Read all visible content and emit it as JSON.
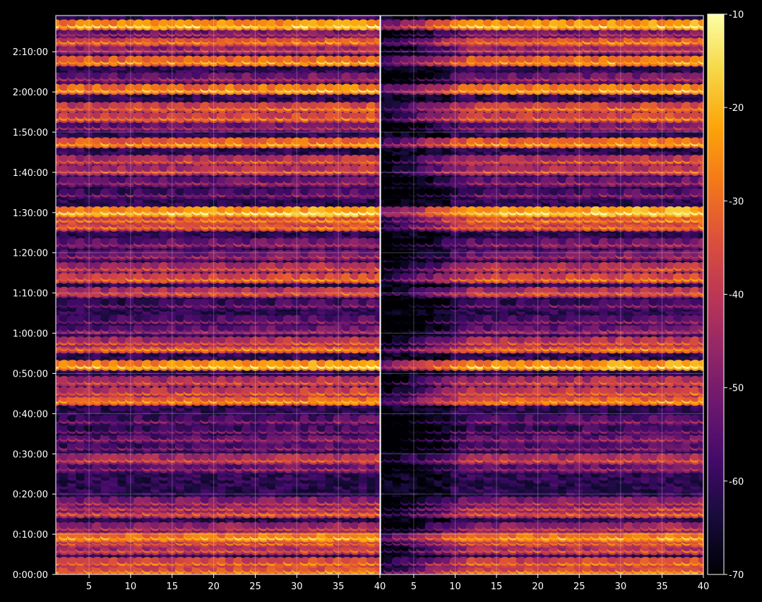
{
  "chart_data": {
    "type": "heatmap",
    "title": "",
    "colormap": "inferno",
    "background": "#000000",
    "grid": true,
    "panels": [
      {
        "name": "",
        "x_ticks": [
          5,
          10,
          15,
          20,
          25,
          30,
          35,
          40
        ],
        "x_range": [
          1,
          40
        ]
      },
      {
        "name": "",
        "x_ticks": [
          5,
          10,
          15,
          20,
          25,
          30,
          35,
          40
        ],
        "x_range": [
          1,
          40
        ]
      }
    ],
    "y_axis": {
      "unit": "time",
      "range_seconds": [
        0,
        8340
      ],
      "ticks": [
        "0:00:00",
        "0:10:00",
        "0:20:00",
        "0:30:00",
        "0:40:00",
        "0:50:00",
        "1:00:00",
        "1:10:00",
        "1:20:00",
        "1:30:00",
        "1:40:00",
        "1:50:00",
        "2:00:00",
        "2:10:00"
      ],
      "tick_seconds": [
        0,
        600,
        1200,
        1800,
        2400,
        3000,
        3600,
        4200,
        4800,
        5400,
        6000,
        6600,
        7200,
        7800
      ]
    },
    "colorbar": {
      "range": [
        -70,
        -10
      ],
      "ticks": [
        "-10",
        "-20",
        "-30",
        "-40",
        "-50",
        "-60",
        "-70"
      ],
      "tick_values": [
        -10,
        -20,
        -30,
        -40,
        -50,
        -60,
        -70
      ]
    },
    "bright_bands_seconds": [
      {
        "t": 60,
        "level": -28
      },
      {
        "t": 180,
        "level": -30
      },
      {
        "t": 370,
        "level": -36
      },
      {
        "t": 480,
        "level": -33
      },
      {
        "t": 560,
        "level": -22
      },
      {
        "t": 700,
        "level": -40
      },
      {
        "t": 920,
        "level": -34
      },
      {
        "t": 1000,
        "level": -38
      },
      {
        "t": 1080,
        "level": -42
      },
      {
        "t": 1590,
        "level": -47
      },
      {
        "t": 1720,
        "level": -36
      },
      {
        "t": 1900,
        "level": -50
      },
      {
        "t": 2030,
        "level": -47
      },
      {
        "t": 2150,
        "level": -52
      },
      {
        "t": 2300,
        "level": -50
      },
      {
        "t": 2600,
        "level": -25
      },
      {
        "t": 2720,
        "level": -33
      },
      {
        "t": 2880,
        "level": -36
      },
      {
        "t": 3120,
        "level": -18
      },
      {
        "t": 3380,
        "level": -28
      },
      {
        "t": 3470,
        "level": -35
      },
      {
        "t": 3650,
        "level": -46
      },
      {
        "t": 3790,
        "level": -50
      },
      {
        "t": 4030,
        "level": -52
      },
      {
        "t": 4210,
        "level": -35
      },
      {
        "t": 4420,
        "level": -30
      },
      {
        "t": 4580,
        "level": -36
      },
      {
        "t": 4760,
        "level": -45
      },
      {
        "t": 4940,
        "level": -46
      },
      {
        "t": 5200,
        "level": -30
      },
      {
        "t": 5300,
        "level": -28
      },
      {
        "t": 5410,
        "level": -16
      },
      {
        "t": 5680,
        "level": -50
      },
      {
        "t": 5860,
        "level": -46
      },
      {
        "t": 6030,
        "level": -35
      },
      {
        "t": 6180,
        "level": -35
      },
      {
        "t": 6440,
        "level": -24
      },
      {
        "t": 6680,
        "level": -45
      },
      {
        "t": 6820,
        "level": -30
      },
      {
        "t": 6970,
        "level": -30
      },
      {
        "t": 7240,
        "level": -22
      },
      {
        "t": 7410,
        "level": -45
      },
      {
        "t": 7660,
        "level": -24
      },
      {
        "t": 7840,
        "level": -40
      },
      {
        "t": 7960,
        "level": -28
      },
      {
        "t": 8080,
        "level": -45
      },
      {
        "t": 8200,
        "level": -18
      }
    ]
  }
}
